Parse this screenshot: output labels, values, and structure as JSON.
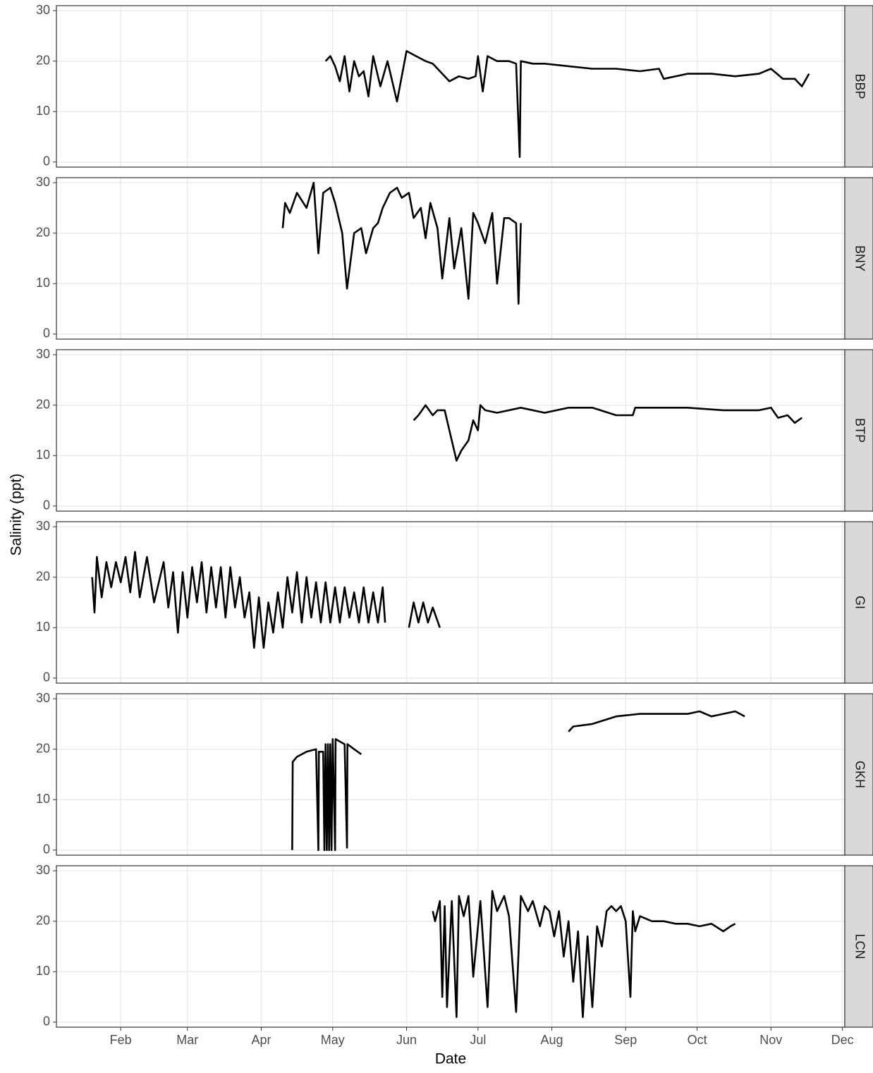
{
  "chart_data": {
    "type": "line",
    "xlabel": "Date",
    "ylabel": "Salinity (ppt)",
    "grid": true,
    "xlim": [
      5,
      336
    ],
    "ylim": [
      -1,
      31
    ],
    "xticks": [
      {
        "value": 32,
        "label": "Feb"
      },
      {
        "value": 60,
        "label": "Mar"
      },
      {
        "value": 91,
        "label": "Apr"
      },
      {
        "value": 121,
        "label": "May"
      },
      {
        "value": 152,
        "label": "Jun"
      },
      {
        "value": 182,
        "label": "Jul"
      },
      {
        "value": 213,
        "label": "Aug"
      },
      {
        "value": 244,
        "label": "Sep"
      },
      {
        "value": 274,
        "label": "Oct"
      },
      {
        "value": 305,
        "label": "Nov"
      },
      {
        "value": 335,
        "label": "Dec"
      }
    ],
    "yticks": [
      0,
      10,
      20,
      30
    ],
    "series": [
      {
        "name": "BBP",
        "color": "#000000",
        "x": [
          118,
          120,
          122,
          124,
          126,
          128,
          130,
          132,
          134,
          136,
          138,
          141,
          144,
          148,
          152,
          156,
          160,
          163,
          166,
          170,
          174,
          178,
          181,
          182,
          184,
          186,
          190,
          195,
          198,
          199.5,
          200,
          205,
          210,
          220,
          230,
          240,
          250,
          258,
          260,
          270,
          280,
          290,
          300,
          305,
          310,
          315,
          318,
          321
        ],
        "values": [
          20,
          21,
          19,
          16,
          21,
          14,
          20,
          17,
          18,
          13,
          21,
          15,
          20,
          12,
          22,
          21,
          20,
          19.5,
          18,
          16,
          17,
          16.5,
          17,
          21,
          14,
          21,
          20,
          20,
          19.5,
          1,
          20,
          19.5,
          19.5,
          19,
          18.5,
          18.5,
          18,
          18.5,
          16.5,
          17.5,
          17.5,
          17,
          17.5,
          18.5,
          16.5,
          16.5,
          15,
          17.5
        ]
      },
      {
        "name": "BNY",
        "color": "#000000",
        "x": [
          100,
          101,
          103,
          106,
          110,
          113,
          115,
          117,
          120,
          122,
          125,
          127,
          130,
          133,
          135,
          138,
          140,
          142,
          145,
          148,
          150,
          153,
          155,
          158,
          160,
          162,
          165,
          167,
          170,
          172,
          175,
          178,
          180,
          182,
          185,
          188,
          190,
          193,
          195,
          198,
          199,
          200
        ],
        "values": [
          21,
          26,
          24,
          28,
          25,
          30,
          16,
          28,
          29,
          26,
          20,
          9,
          20,
          21,
          16,
          21,
          22,
          25,
          28,
          29,
          27,
          28,
          23,
          25,
          19,
          26,
          21,
          11,
          23,
          13,
          21,
          7,
          24,
          22,
          18,
          24,
          10,
          23,
          23,
          22,
          6,
          22
        ]
      },
      {
        "name": "BTP",
        "color": "#000000",
        "x": [
          155,
          157,
          160,
          163,
          165,
          168,
          170,
          173,
          175,
          178,
          180,
          182,
          183,
          185,
          190,
          200,
          210,
          220,
          230,
          240,
          247,
          248,
          255,
          270,
          285,
          300,
          305,
          308,
          312,
          315,
          318
        ],
        "values": [
          17,
          18,
          20,
          18,
          19,
          19,
          15,
          9,
          11,
          13,
          17,
          15,
          20,
          19,
          18.5,
          19.5,
          18.5,
          19.5,
          19.5,
          18,
          18,
          19.5,
          19.5,
          19.5,
          19,
          19,
          19.5,
          17.5,
          18,
          16.5,
          17.5
        ]
      },
      {
        "name": "GI",
        "color": "#000000",
        "x": [
          20,
          21,
          22,
          24,
          26,
          28,
          30,
          32,
          34,
          36,
          38,
          40,
          43,
          46,
          50,
          52,
          54,
          56,
          58,
          60,
          62,
          64,
          66,
          68,
          70,
          72,
          74,
          76,
          78,
          80,
          82,
          84,
          86,
          88,
          90,
          92,
          94,
          96,
          98,
          100,
          102,
          104,
          106,
          108,
          110,
          112,
          114,
          116,
          118,
          120,
          122,
          124,
          126,
          128,
          130,
          132,
          134,
          136,
          138,
          140,
          142,
          143,
          148,
          153,
          155,
          157,
          159,
          161,
          163,
          166
        ],
        "values": [
          20,
          13,
          24,
          16,
          23,
          18,
          23,
          19,
          24,
          17,
          25,
          16,
          24,
          15,
          23,
          14,
          21,
          9,
          21,
          12,
          22,
          15,
          23,
          13,
          22,
          14,
          22,
          12,
          22,
          14,
          20,
          12,
          17,
          6,
          16,
          6,
          15,
          9,
          17,
          10,
          20,
          13,
          21,
          11,
          20,
          12,
          19,
          11,
          19,
          11,
          18,
          11,
          18,
          12,
          17,
          11,
          18,
          11,
          17,
          11,
          18,
          11,
          null,
          10,
          15,
          11,
          15,
          11,
          14,
          10
        ]
      },
      {
        "name": "GKH",
        "color": "#000000",
        "x": [
          104,
          104.2,
          106,
          110,
          114,
          115,
          115.2,
          117,
          117.5,
          118,
          118.5,
          119,
          119.5,
          120,
          120.5,
          121,
          122,
          122.2,
          126,
          127,
          127.2,
          130,
          133,
          170,
          220,
          222,
          230,
          240,
          250,
          260,
          270,
          275,
          280,
          290,
          294
        ],
        "values": [
          0,
          17.5,
          18.5,
          19.5,
          20,
          0,
          19.5,
          19.5,
          0,
          21,
          0,
          21,
          0,
          21,
          0,
          22,
          0,
          22,
          21,
          0.5,
          21,
          20,
          19,
          null,
          23.5,
          24.5,
          25,
          26.5,
          27,
          27,
          27,
          27.5,
          26.5,
          27.5,
          26.5
        ]
      },
      {
        "name": "LCN",
        "color": "#000000",
        "x": [
          163,
          164,
          166,
          167,
          168,
          169,
          171,
          173,
          174,
          176,
          178,
          180,
          183,
          186,
          188,
          190,
          193,
          195,
          198,
          200,
          203,
          205,
          208,
          210,
          212,
          214,
          216,
          218,
          220,
          222,
          224,
          226,
          228,
          230,
          232,
          234,
          236,
          238,
          240,
          242,
          244,
          246,
          247,
          248,
          250,
          255,
          260,
          265,
          270,
          275,
          280,
          285,
          288,
          290
        ],
        "values": [
          22,
          20,
          24,
          5,
          23,
          3,
          24,
          1,
          25,
          21,
          25,
          9,
          24,
          3,
          26,
          22,
          25,
          21,
          2,
          25,
          22,
          24,
          19,
          23,
          22,
          17,
          22,
          13,
          20,
          8,
          18,
          1,
          17,
          3,
          19,
          15,
          22,
          23,
          22,
          23,
          20,
          5,
          22,
          18,
          21,
          20,
          20,
          19.5,
          19.5,
          19,
          19.5,
          18,
          19,
          19.5
        ]
      }
    ]
  }
}
